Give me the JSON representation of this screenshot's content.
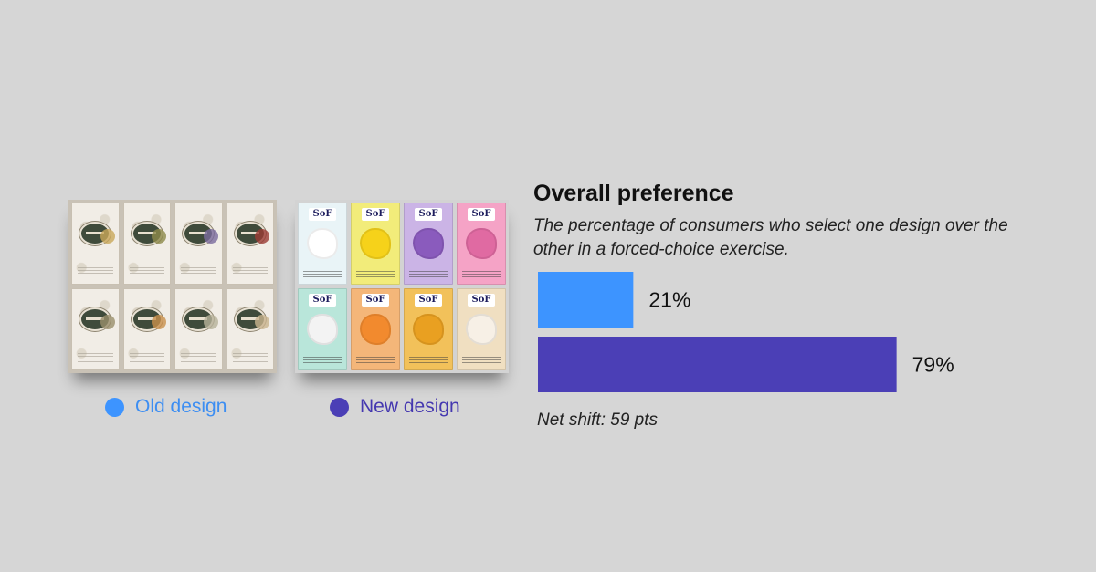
{
  "chart_data": {
    "type": "bar",
    "orientation": "horizontal",
    "title": "Overall preference",
    "subtitle": "The percentage of consumers who select one design over the other in a forced-choice exercise.",
    "categories": [
      "Old design",
      "New design"
    ],
    "values": [
      21,
      79
    ],
    "value_labels": [
      "21%",
      "79%"
    ],
    "colors": [
      "#3d94ff",
      "#4b3fb6"
    ],
    "xlim": [
      0,
      100
    ],
    "grid": false,
    "legend_placement": "below images",
    "footnote": "Net shift: 59 pts"
  },
  "legend": {
    "old": {
      "label": "Old design",
      "color": "#3d94ff",
      "text_color": "#3d8ef2"
    },
    "new": {
      "label": "New design",
      "color": "#4b3fb6",
      "text_color": "#4538b0"
    }
  },
  "images": {
    "old": {
      "icon": "soap-box-icon",
      "box_count": 8
    },
    "new": {
      "icon": "soap-box-icon",
      "box_count": 8,
      "brand_mark": "SoF",
      "box_colors": [
        "#e9f4f7",
        "#f2ec7a",
        "#cbb4e6",
        "#f5a3c6",
        "#b9e6da",
        "#f4b679",
        "#f2c15a",
        "#f0dfc1"
      ]
    }
  }
}
